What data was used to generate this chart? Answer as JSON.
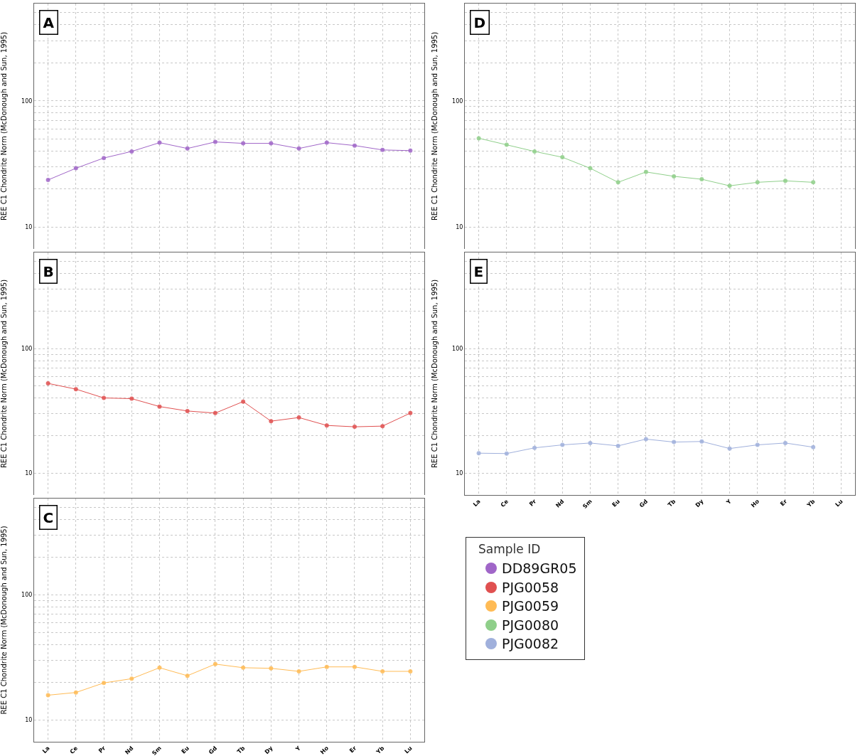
{
  "chart_data": [
    {
      "type": "line",
      "title": "A",
      "ylabel": "REE C1 Chondrite Norm (McDonough and Sun, 1995)",
      "categories": [
        null,
        null,
        null,
        null,
        null,
        null,
        null,
        null,
        null,
        null,
        null,
        null,
        null,
        null
      ],
      "series": [
        {
          "name": "DD89GR05",
          "color": "#a066c8",
          "values": [
            23.6,
            29.2,
            35.2,
            39.7,
            46.6,
            41.9,
            47.2,
            46.0,
            46.0,
            41.9,
            46.6,
            44.2,
            40.8,
            40.3
          ]
        }
      ],
      "log": "y",
      "ylim": [
        6.7,
        590
      ],
      "yticks": [
        {
          "value": 10,
          "label": "10"
        },
        {
          "value": 20,
          "label": null
        },
        {
          "value": 30,
          "label": null
        },
        {
          "value": 40,
          "label": null
        },
        {
          "value": 50,
          "label": null
        },
        {
          "value": 60,
          "label": null
        },
        {
          "value": 70,
          "label": null
        },
        {
          "value": 80,
          "label": null
        },
        {
          "value": 90,
          "label": null
        },
        {
          "value": 100,
          "label": "100"
        },
        {
          "value": 200,
          "label": null
        },
        {
          "value": 300,
          "label": null
        },
        {
          "value": 400,
          "label": null
        },
        {
          "value": 500,
          "label": null
        }
      ],
      "grid": true,
      "marker": "circle",
      "line_style": "solid"
    },
    {
      "type": "line",
      "title": "B",
      "ylabel": "REE C1 Chondrite Norm (McDonough and Sun, 1995)",
      "categories": [
        null,
        null,
        null,
        null,
        null,
        null,
        null,
        null,
        null,
        null,
        null,
        null,
        null,
        null
      ],
      "series": [
        {
          "name": "PJG0058",
          "color": "#e05050",
          "values": [
            52.6,
            47.3,
            40.2,
            39.7,
            34.3,
            31.6,
            30.4,
            37.6,
            26.2,
            28.0,
            24.2,
            23.6,
            23.9,
            30.4
          ]
        }
      ],
      "log": "y",
      "ylim": [
        6.7,
        590
      ],
      "yticks": [
        {
          "value": 10,
          "label": "10"
        },
        {
          "value": 20,
          "label": null
        },
        {
          "value": 30,
          "label": null
        },
        {
          "value": 40,
          "label": null
        },
        {
          "value": 50,
          "label": null
        },
        {
          "value": 60,
          "label": null
        },
        {
          "value": 70,
          "label": null
        },
        {
          "value": 80,
          "label": null
        },
        {
          "value": 90,
          "label": null
        },
        {
          "value": 100,
          "label": "100"
        },
        {
          "value": 200,
          "label": null
        },
        {
          "value": 300,
          "label": null
        },
        {
          "value": 400,
          "label": null
        },
        {
          "value": 500,
          "label": null
        }
      ],
      "grid": true,
      "marker": "circle",
      "line_style": "solid"
    },
    {
      "type": "line",
      "title": "C",
      "ylabel": "REE C1 Chondrite Norm (McDonough and Sun, 1995)",
      "categories": [
        "La",
        "Ce",
        "Pr",
        "Nd",
        "Sm",
        "Eu",
        "Gd",
        "Tb",
        "Dy",
        "Y",
        "Ho",
        "Er",
        "Yb",
        "Lu"
      ],
      "series": [
        {
          "name": "PJG0059",
          "color": "#ffbb55",
          "values": [
            15.8,
            16.6,
            19.8,
            21.4,
            26.2,
            22.6,
            28.0,
            26.2,
            25.9,
            24.5,
            26.6,
            26.6,
            24.5,
            24.5
          ]
        }
      ],
      "log": "y",
      "ylim": [
        6.7,
        590
      ],
      "yticks": [
        {
          "value": 10,
          "label": "10"
        },
        {
          "value": 20,
          "label": null
        },
        {
          "value": 30,
          "label": null
        },
        {
          "value": 40,
          "label": null
        },
        {
          "value": 50,
          "label": null
        },
        {
          "value": 60,
          "label": null
        },
        {
          "value": 70,
          "label": null
        },
        {
          "value": 80,
          "label": null
        },
        {
          "value": 90,
          "label": null
        },
        {
          "value": 100,
          "label": "100"
        },
        {
          "value": 200,
          "label": null
        },
        {
          "value": 300,
          "label": null
        },
        {
          "value": 400,
          "label": null
        },
        {
          "value": 500,
          "label": null
        }
      ],
      "grid": true,
      "marker": "circle",
      "line_style": "solid"
    },
    {
      "type": "line",
      "title": "D",
      "ylabel": "REE C1 Chondrite Norm (McDonough and Sun, 1995)",
      "categories": [
        null,
        null,
        null,
        null,
        null,
        null,
        null,
        null,
        null,
        null,
        null,
        null,
        null,
        null
      ],
      "series": [
        {
          "name": "PJG0080",
          "color": "#8fcf8a",
          "values": [
            50.5,
            44.8,
            39.7,
            35.7,
            29.2,
            22.6,
            27.3,
            25.2,
            23.9,
            21.2,
            22.6,
            23.2,
            22.6,
            null
          ]
        }
      ],
      "log": "y",
      "ylim": [
        6.7,
        590
      ],
      "yticks": [
        {
          "value": 10,
          "label": "10"
        },
        {
          "value": 20,
          "label": null
        },
        {
          "value": 30,
          "label": null
        },
        {
          "value": 40,
          "label": null
        },
        {
          "value": 50,
          "label": null
        },
        {
          "value": 60,
          "label": null
        },
        {
          "value": 70,
          "label": null
        },
        {
          "value": 80,
          "label": null
        },
        {
          "value": 90,
          "label": null
        },
        {
          "value": 100,
          "label": "100"
        },
        {
          "value": 200,
          "label": null
        },
        {
          "value": 300,
          "label": null
        },
        {
          "value": 400,
          "label": null
        },
        {
          "value": 500,
          "label": null
        }
      ],
      "grid": true,
      "marker": "circle",
      "line_style": "solid"
    },
    {
      "type": "line",
      "title": "E",
      "ylabel": "REE C1 Chondrite Norm (McDonough and Sun, 1995)",
      "categories": [
        "La",
        "Ce",
        "Pr",
        "Nd",
        "Sm",
        "Eu",
        "Gd",
        "Tb",
        "Dy",
        "Y",
        "Ho",
        "Er",
        "Yb",
        "Lu"
      ],
      "series": [
        {
          "name": "PJG0082",
          "color": "#a0b0dc",
          "values": [
            14.5,
            14.4,
            16.0,
            16.9,
            17.5,
            16.6,
            18.8,
            17.8,
            18.0,
            15.8,
            16.9,
            17.5,
            16.2,
            null
          ]
        }
      ],
      "log": "y",
      "ylim": [
        6.7,
        590
      ],
      "yticks": [
        {
          "value": 10,
          "label": "10"
        },
        {
          "value": 20,
          "label": null
        },
        {
          "value": 30,
          "label": null
        },
        {
          "value": 40,
          "label": null
        },
        {
          "value": 50,
          "label": null
        },
        {
          "value": 60,
          "label": null
        },
        {
          "value": 70,
          "label": null
        },
        {
          "value": 80,
          "label": null
        },
        {
          "value": 90,
          "label": null
        },
        {
          "value": 100,
          "label": "100"
        },
        {
          "value": 200,
          "label": null
        },
        {
          "value": 300,
          "label": null
        },
        {
          "value": 400,
          "label": null
        },
        {
          "value": 500,
          "label": null
        }
      ],
      "grid": true,
      "marker": "circle",
      "line_style": "solid",
      "legend": "bottom",
      "legend_title": "Sample ID"
    }
  ]
}
